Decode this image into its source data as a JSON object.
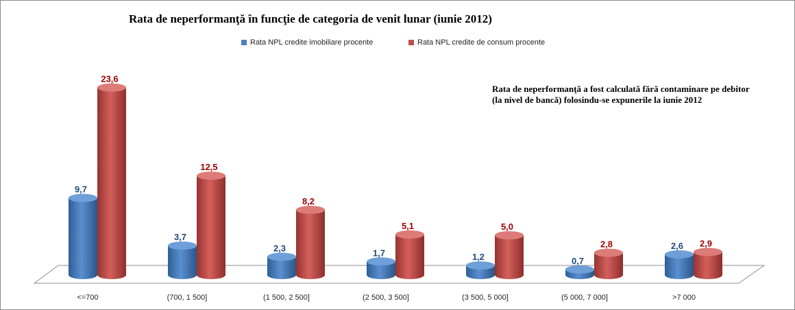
{
  "chart_data": {
    "type": "bar",
    "title": "Rata de neperformanţă în funcţie de categoria de venit lunar (iunie 2012)",
    "categories": [
      "<=700",
      "(700, 1 500]",
      "(1 500, 2 500]",
      "(2 500, 3 500]",
      "(3 500, 5 000]",
      "(5 000, 7 000]",
      ">7 000"
    ],
    "series": [
      {
        "name": "Rata NPL credite imobiliare procente",
        "color": "#4f81bd",
        "values": [
          9.7,
          3.7,
          2.3,
          1.7,
          1.2,
          0.7,
          2.6
        ],
        "labels": [
          "9,7",
          "3,7",
          "2,3",
          "1,7",
          "1,2",
          "0,7",
          "2,6"
        ],
        "label_color": "#1f497d"
      },
      {
        "name": "Rata NPL credite de consum procente",
        "color": "#c0504d",
        "values": [
          23.6,
          12.5,
          8.2,
          5.1,
          5.0,
          2.8,
          2.9
        ],
        "labels": [
          "23,6",
          "12,5",
          "8,2",
          "5,1",
          "5,0",
          "2,8",
          "2,9"
        ],
        "label_color": "#a00000"
      }
    ],
    "ylim": [
      0,
      24
    ],
    "legend": "top-center",
    "grid": false,
    "annotation": "Rata de neperformanţă a fost calculată fără contaminare pe debitor (la nivel de bancă) folosindu-se expunerile la iunie 2012"
  }
}
